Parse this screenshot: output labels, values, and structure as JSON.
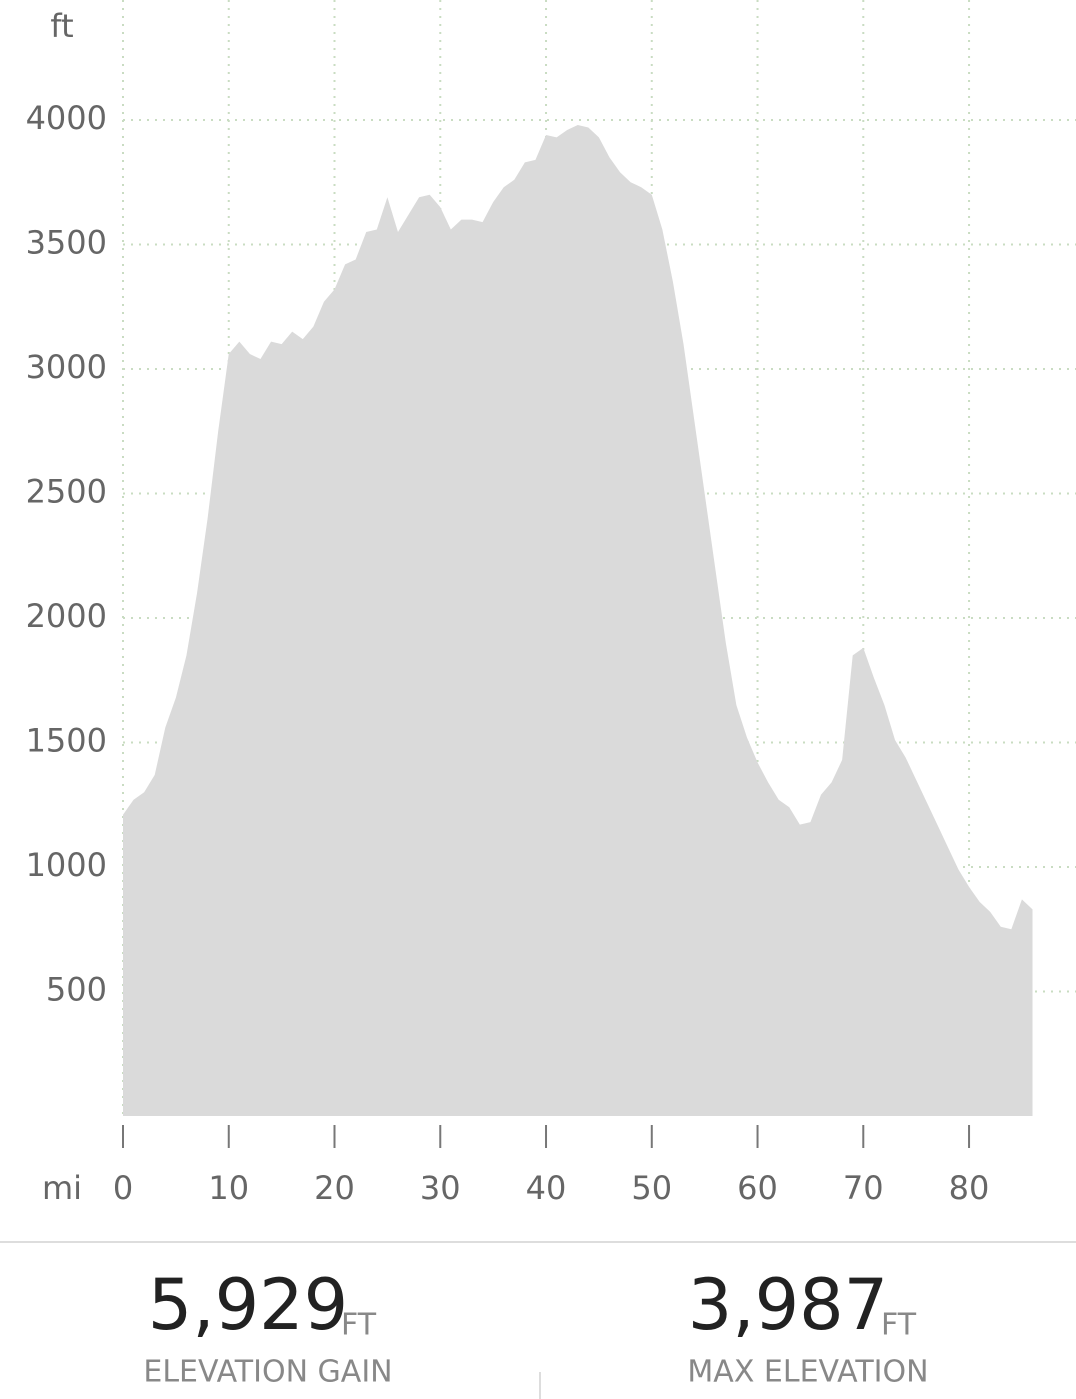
{
  "chart_data": {
    "type": "area",
    "ylabel": "ft",
    "xlabel": "mi",
    "color": "#dadada",
    "grid": true,
    "x": [
      0,
      1,
      2,
      3,
      4,
      5,
      6,
      7,
      8,
      9,
      10,
      11,
      12,
      13,
      14,
      15,
      16,
      17,
      18,
      19,
      20,
      21,
      22,
      23,
      24,
      25,
      26,
      27,
      28,
      29,
      30,
      31,
      32,
      33,
      34,
      35,
      36,
      37,
      38,
      39,
      40,
      41,
      42,
      43,
      44,
      45,
      46,
      47,
      48,
      49,
      50,
      51,
      52,
      53,
      54,
      55,
      56,
      57,
      58,
      59,
      60,
      61,
      62,
      63,
      64,
      65,
      66,
      67,
      68,
      69,
      70,
      71,
      72,
      73,
      74,
      75,
      76,
      77,
      78,
      79,
      80,
      81,
      82,
      83,
      84,
      85,
      86
    ],
    "series": [
      {
        "name": "Elevation",
        "color": "#dadada",
        "values": [
          1210,
          1270,
          1300,
          1370,
          1560,
          1680,
          1850,
          2100,
          2400,
          2750,
          3060,
          3110,
          3060,
          3040,
          3110,
          3100,
          3150,
          3120,
          3170,
          3270,
          3320,
          3420,
          3440,
          3550,
          3560,
          3690,
          3550,
          3620,
          3690,
          3700,
          3650,
          3560,
          3600,
          3600,
          3590,
          3670,
          3730,
          3760,
          3830,
          3840,
          3940,
          3930,
          3960,
          3980,
          3970,
          3930,
          3850,
          3790,
          3750,
          3730,
          3700,
          3560,
          3350,
          3100,
          2800,
          2500,
          2200,
          1900,
          1650,
          1520,
          1420,
          1340,
          1270,
          1240,
          1170,
          1180,
          1290,
          1340,
          1430,
          1850,
          1880,
          1760,
          1650,
          1510,
          1440,
          1350,
          1260,
          1170,
          1080,
          990,
          920,
          860,
          820,
          760,
          750,
          870,
          830
        ]
      }
    ],
    "xlim": [
      0,
      86
    ],
    "ylim": [
      0,
      4000
    ],
    "xticks": [
      0,
      10,
      20,
      30,
      40,
      50,
      60,
      70,
      80
    ],
    "yticks": [
      500,
      1000,
      1500,
      2000,
      2500,
      3000,
      3500,
      4000
    ]
  },
  "stats": [
    {
      "value": "5,929",
      "unit": "FT",
      "label": "ELEVATION GAIN"
    },
    {
      "value": "3,987",
      "unit": "FT",
      "label": "MAX ELEVATION"
    }
  ]
}
